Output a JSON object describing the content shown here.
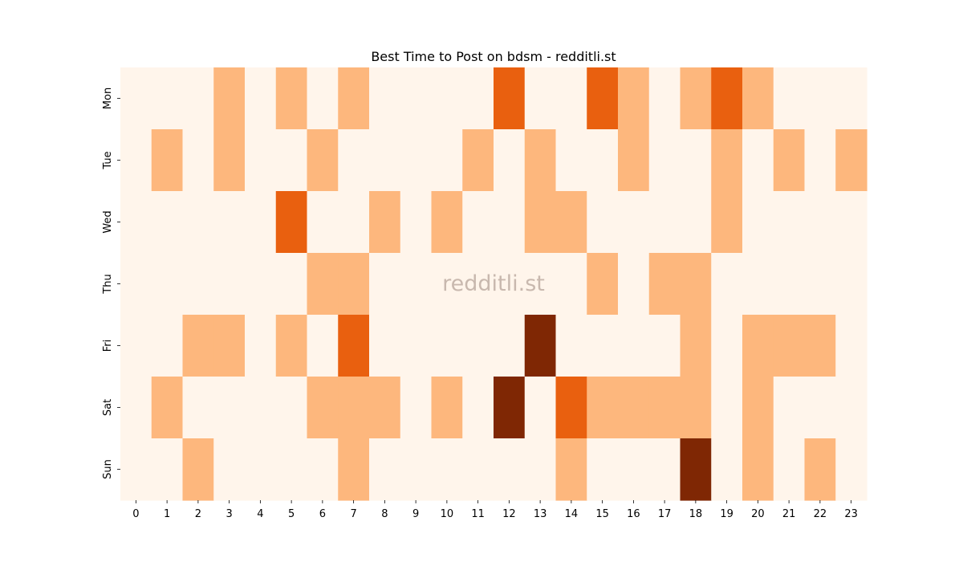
{
  "watermark": "redditli.st",
  "colors": {
    "levels": [
      "#fff5eb",
      "#fdb77d",
      "#e9600f",
      "#7f2704"
    ]
  },
  "chart_data": {
    "type": "heatmap",
    "title": "Best Time to Post on bdsm - redditli.st",
    "xlabel": "",
    "ylabel": "",
    "x": [
      "0",
      "1",
      "2",
      "3",
      "4",
      "5",
      "6",
      "7",
      "8",
      "9",
      "10",
      "11",
      "12",
      "13",
      "14",
      "15",
      "16",
      "17",
      "18",
      "19",
      "20",
      "21",
      "22",
      "23"
    ],
    "y": [
      "Mon",
      "Tue",
      "Wed",
      "Thu",
      "Fri",
      "Sat",
      "Sun"
    ],
    "value_range": [
      0,
      3
    ],
    "values": [
      [
        0,
        0,
        0,
        1,
        0,
        1,
        0,
        1,
        0,
        0,
        0,
        0,
        2,
        0,
        0,
        2,
        1,
        0,
        1,
        2,
        1,
        0,
        0,
        0
      ],
      [
        0,
        1,
        0,
        1,
        0,
        0,
        1,
        0,
        0,
        0,
        0,
        1,
        0,
        1,
        0,
        0,
        1,
        0,
        0,
        1,
        0,
        1,
        0,
        1
      ],
      [
        0,
        0,
        0,
        0,
        0,
        2,
        0,
        0,
        1,
        0,
        1,
        0,
        0,
        1,
        1,
        0,
        0,
        0,
        0,
        1,
        0,
        0,
        0,
        0
      ],
      [
        0,
        0,
        0,
        0,
        0,
        0,
        1,
        1,
        0,
        0,
        0,
        0,
        0,
        0,
        0,
        1,
        0,
        1,
        1,
        0,
        0,
        0,
        0,
        0
      ],
      [
        0,
        0,
        1,
        1,
        0,
        1,
        0,
        2,
        0,
        0,
        0,
        0,
        0,
        3,
        0,
        0,
        0,
        0,
        1,
        0,
        1,
        1,
        1,
        0
      ],
      [
        0,
        1,
        0,
        0,
        0,
        0,
        1,
        1,
        1,
        0,
        1,
        0,
        3,
        0,
        2,
        1,
        1,
        1,
        1,
        0,
        1,
        0,
        0,
        0
      ],
      [
        0,
        0,
        1,
        0,
        0,
        0,
        0,
        1,
        0,
        0,
        0,
        0,
        0,
        0,
        1,
        0,
        0,
        0,
        3,
        0,
        1,
        0,
        1,
        0
      ]
    ]
  }
}
